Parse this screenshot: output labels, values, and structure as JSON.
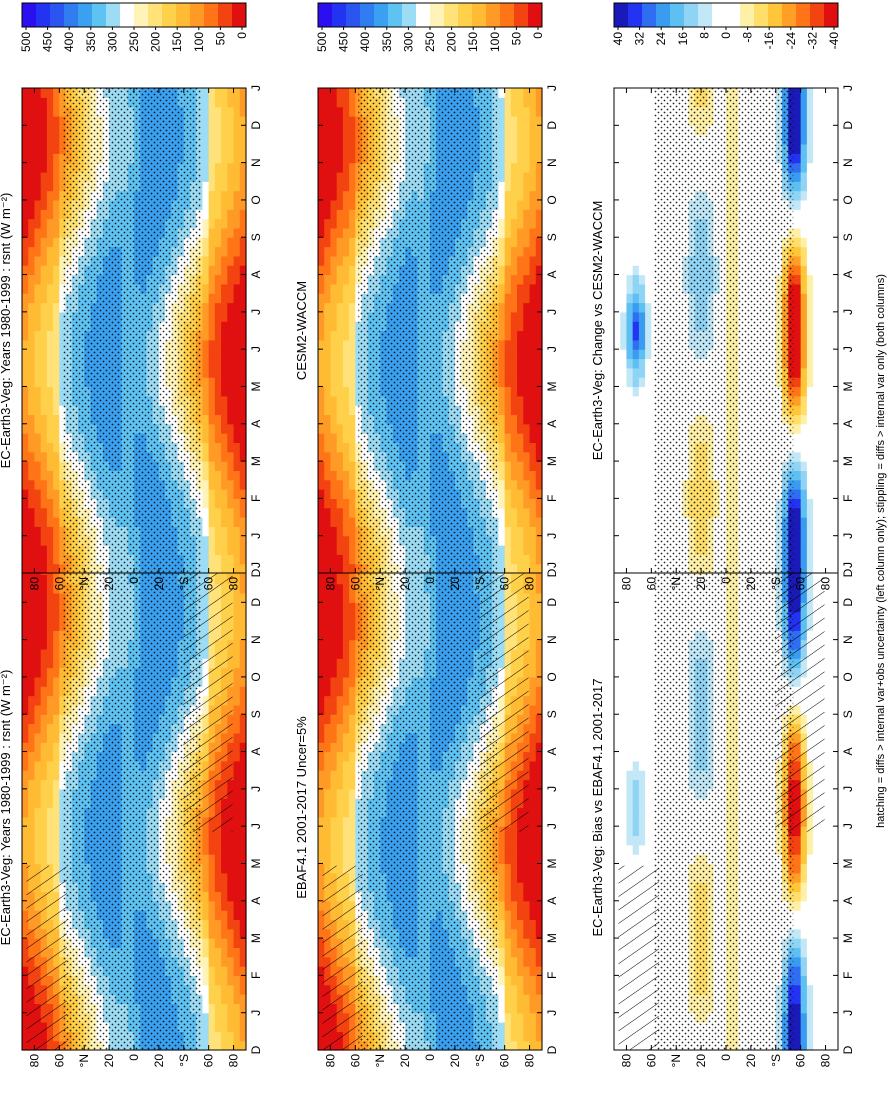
{
  "footnote": "hatching = diffs > internal var+obs uncertainty (left column only); stippling = diffs > internal var only (both columns)",
  "colors": {
    "abs_scale": [
      "#2c0ff0",
      "#2233f2",
      "#2a55f0",
      "#2f7df0",
      "#3aa0f0",
      "#5ec3f2",
      "#9ddcf5",
      "#ffffff",
      "#fff3b8",
      "#ffe37a",
      "#ffd04a",
      "#ffbb33",
      "#ff9a26",
      "#ff7417",
      "#f24311",
      "#e01010"
    ],
    "diff_scale": [
      "#1a1ab8",
      "#2233f2",
      "#2f6ef0",
      "#3a9cf0",
      "#5ec0f2",
      "#8fd4f5",
      "#c2e8f7",
      "#ffffff",
      "#ffffff",
      "#fff0a8",
      "#ffdf6a",
      "#ffc63a",
      "#ff9f26",
      "#ff7417",
      "#f24311",
      "#e01010"
    ]
  },
  "chart_data": [
    {
      "type": "heatmap",
      "title": "EC-Earth3-Veg: Years 1980-1999 : rsnt (W m⁻²)",
      "x_ticks": [
        "D",
        "J",
        "F",
        "M",
        "A",
        "M",
        "J",
        "J",
        "A",
        "S",
        "O",
        "N",
        "D",
        "J"
      ],
      "y_ticks": [
        "80",
        "60",
        "°N",
        "20",
        "0",
        "20",
        "°S",
        "60",
        "80"
      ],
      "colorbar_ticks": [
        "500",
        "450",
        "400",
        "350",
        "300",
        "250",
        "200",
        "150",
        "100",
        "50",
        "0"
      ],
      "overlays": [
        "hatching",
        "stippling"
      ]
    },
    {
      "type": "heatmap",
      "title": "EC-Earth3-Veg: Years 1980-1999 : rsnt (W m⁻²)",
      "x_ticks": [
        "D",
        "J",
        "F",
        "M",
        "A",
        "M",
        "J",
        "J",
        "A",
        "S",
        "O",
        "N",
        "D",
        "J"
      ],
      "y_ticks": [
        "80",
        "60",
        "°N",
        "20",
        "0",
        "20",
        "°S",
        "60",
        "80"
      ],
      "colorbar_ticks": [
        "500",
        "450",
        "400",
        "350",
        "300",
        "250",
        "200",
        "150",
        "100",
        "50",
        "0"
      ],
      "overlays": [
        "stippling"
      ]
    },
    {
      "type": "heatmap",
      "title": "EBAF4.1 2001-2017 Uncer=5%",
      "x_ticks": [
        "D",
        "J",
        "F",
        "M",
        "A",
        "M",
        "J",
        "J",
        "A",
        "S",
        "O",
        "N",
        "D",
        "J"
      ],
      "y_ticks": [
        "80",
        "60",
        "°N",
        "20",
        "0",
        "20",
        "°S",
        "60",
        "80"
      ],
      "colorbar_ticks": [
        "500",
        "450",
        "400",
        "350",
        "300",
        "250",
        "200",
        "150",
        "100",
        "50",
        "0"
      ],
      "overlays": [
        "hatching",
        "stippling"
      ]
    },
    {
      "type": "heatmap",
      "title": "CESM2-WACCM",
      "x_ticks": [
        "D",
        "J",
        "F",
        "M",
        "A",
        "M",
        "J",
        "J",
        "A",
        "S",
        "O",
        "N",
        "D",
        "J"
      ],
      "y_ticks": [
        "80",
        "60",
        "°N",
        "20",
        "0",
        "20",
        "°S",
        "60",
        "80"
      ],
      "colorbar_ticks": [
        "500",
        "450",
        "400",
        "350",
        "300",
        "250",
        "200",
        "150",
        "100",
        "50",
        "0"
      ],
      "overlays": [
        "stippling"
      ]
    },
    {
      "type": "heatmap",
      "title": "EC-Earth3-Veg: Bias vs EBAF4.1 2001-2017",
      "x_ticks": [
        "D",
        "J",
        "F",
        "M",
        "A",
        "M",
        "J",
        "J",
        "A",
        "S",
        "O",
        "N",
        "D",
        "J"
      ],
      "y_ticks": [
        "80",
        "60",
        "°N",
        "20",
        "0",
        "20",
        "°S",
        "60",
        "80"
      ],
      "colorbar_ticks": [
        "40",
        "32",
        "24",
        "16",
        "8",
        "0",
        "-8",
        "-16",
        "-24",
        "-32",
        "-40"
      ],
      "overlays": [
        "hatching",
        "stippling"
      ]
    },
    {
      "type": "heatmap",
      "title": "EC-Earth3-Veg: Change vs CESM2-WACCM",
      "x_ticks": [
        "D",
        "J",
        "F",
        "M",
        "A",
        "M",
        "J",
        "J",
        "A",
        "S",
        "O",
        "N",
        "D",
        "J"
      ],
      "y_ticks": [
        "80",
        "60",
        "°N",
        "20",
        "0",
        "20",
        "°S",
        "60",
        "80"
      ],
      "colorbar_ticks": [
        "40",
        "32",
        "24",
        "16",
        "8",
        "0",
        "-8",
        "-16",
        "-24",
        "-32",
        "-40"
      ],
      "overlays": [
        "stippling"
      ]
    }
  ]
}
